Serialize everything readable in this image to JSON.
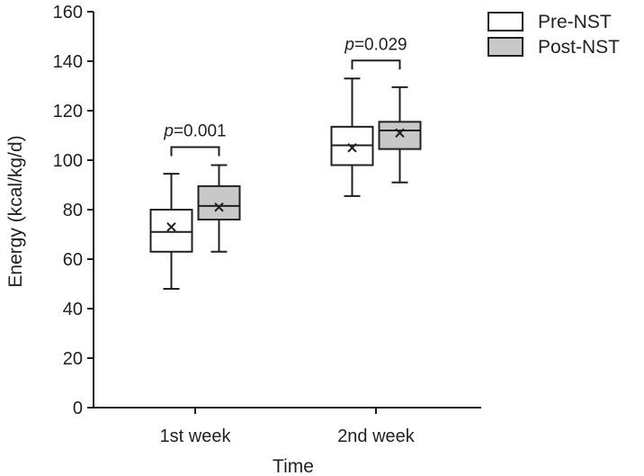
{
  "chart_data": {
    "type": "boxplot",
    "title": "",
    "xlabel": "Time",
    "ylabel": "Energy (kcal/kg/d)",
    "ylim": [
      0,
      160
    ],
    "yticks": [
      0,
      20,
      40,
      60,
      80,
      100,
      120,
      140,
      160
    ],
    "categories": [
      "1st week",
      "2nd week"
    ],
    "legend": {
      "position": "top-right",
      "entries": [
        "Pre-NST",
        "Post-NST"
      ]
    },
    "series": [
      {
        "name": "Pre-NST",
        "color": "#ffffff",
        "boxes": [
          {
            "whisker_low": 48,
            "q1": 63,
            "median": 71,
            "q3": 80,
            "whisker_high": 94.5,
            "mean": 73
          },
          {
            "whisker_low": 85.5,
            "q1": 98,
            "median": 106,
            "q3": 113.5,
            "whisker_high": 133,
            "mean": 105
          }
        ]
      },
      {
        "name": "Post-NST",
        "color": "#c8c8c8",
        "boxes": [
          {
            "whisker_low": 63,
            "q1": 76,
            "median": 81.5,
            "q3": 89.5,
            "whisker_high": 98,
            "mean": 81
          },
          {
            "whisker_low": 91,
            "q1": 104.5,
            "median": 112,
            "q3": 115.5,
            "whisker_high": 129.5,
            "mean": 111
          }
        ]
      }
    ],
    "annotations": [
      {
        "category": "1st week",
        "p_label": "p",
        "p_value": "=0.001"
      },
      {
        "category": "2nd week",
        "p_label": "p",
        "p_value": "=0.029"
      }
    ]
  }
}
